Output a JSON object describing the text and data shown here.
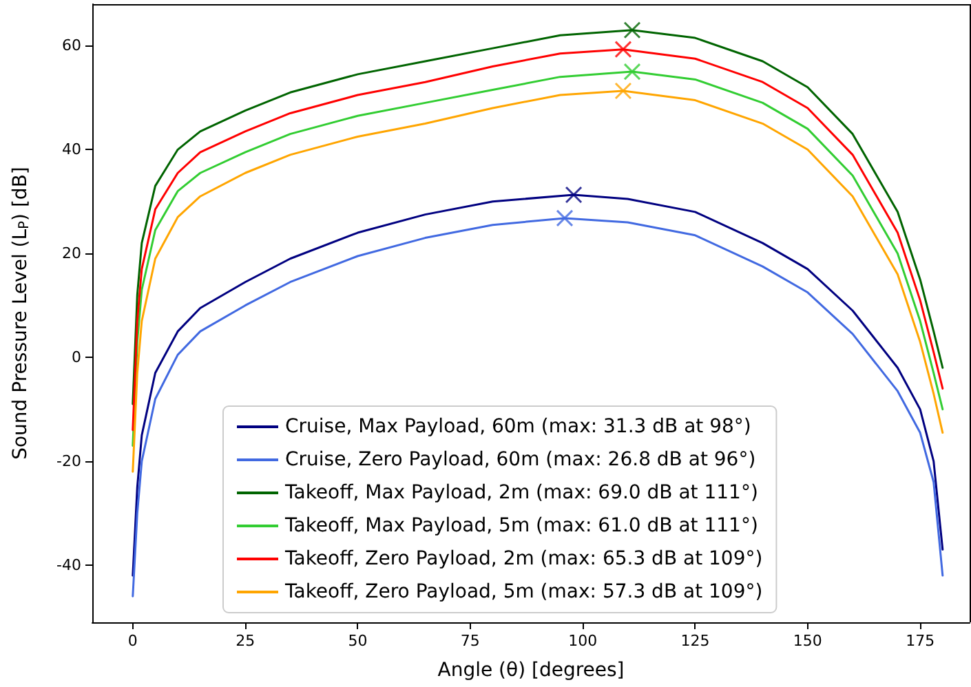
{
  "chart_data": {
    "type": "line",
    "xlabel": "Angle (θ) [degrees]",
    "ylabel": "Sound Pressure Level (L$_{P}$) [dB]",
    "xlim": [
      -9,
      186
    ],
    "xticks": [
      0,
      25,
      50,
      75,
      100,
      125,
      150,
      175
    ],
    "ylim": [
      -51,
      68
    ],
    "yticks": [
      -40,
      -20,
      0,
      20,
      40,
      60
    ],
    "grid": false,
    "legend": "bottom",
    "marker": "none",
    "line_style": "solid",
    "series": [
      {
        "name": "Cruise, Max Payload, 60m (max: 31.3 dB at 98°)",
        "color": "#000080",
        "x": [
          0,
          1,
          2,
          5,
          10,
          15,
          25,
          35,
          50,
          65,
          80,
          98,
          110,
          125,
          140,
          150,
          160,
          170,
          175,
          178,
          180
        ],
        "values": [
          -42,
          -25,
          -15,
          -3,
          5,
          9.5,
          14.5,
          19,
          24,
          27.5,
          30,
          31.3,
          30.5,
          28,
          22,
          17,
          9,
          -2,
          -10,
          -20,
          -37
        ]
      },
      {
        "name": "Cruise, Zero Payload, 60m (max: 26.8 dB at 96°)",
        "color": "#4169e1",
        "x": [
          0,
          1,
          2,
          5,
          10,
          15,
          25,
          35,
          50,
          65,
          80,
          96,
          110,
          125,
          140,
          150,
          160,
          170,
          175,
          178,
          180
        ],
        "values": [
          -46,
          -30,
          -20,
          -8,
          0.5,
          5,
          10,
          14.5,
          19.5,
          23,
          25.5,
          26.8,
          26,
          23.5,
          17.5,
          12.5,
          4.5,
          -6.5,
          -14.5,
          -24,
          -42
        ]
      },
      {
        "name": "Takeoff, Max Payload, 2m (max: 69.0 dB at 111°)",
        "color": "#006400",
        "x": [
          0,
          1,
          2,
          5,
          10,
          15,
          25,
          35,
          50,
          65,
          80,
          95,
          111,
          125,
          140,
          150,
          160,
          170,
          175,
          178,
          180
        ],
        "values": [
          -9,
          12,
          22,
          33,
          40,
          43.5,
          47.5,
          51,
          54.5,
          57,
          59.5,
          62,
          63,
          61.5,
          57,
          52,
          43,
          28,
          15,
          5,
          -2
        ]
      },
      {
        "name": "Takeoff, Max Payload, 5m (max: 61.0 dB at 111°)",
        "color": "#32cd32",
        "x": [
          0,
          1,
          2,
          5,
          10,
          15,
          25,
          35,
          50,
          65,
          80,
          95,
          111,
          125,
          140,
          150,
          160,
          170,
          175,
          178,
          180
        ],
        "values": [
          -17,
          3,
          13,
          24.5,
          32,
          35.5,
          39.5,
          43,
          46.5,
          49,
          51.5,
          54,
          55,
          53.5,
          49,
          44,
          35,
          20,
          7,
          -3,
          -10
        ]
      },
      {
        "name": "Takeoff, Zero Payload, 2m (max: 65.3 dB at 109°)",
        "color": "#ff0000",
        "x": [
          0,
          1,
          2,
          5,
          10,
          15,
          25,
          35,
          50,
          65,
          80,
          95,
          109,
          125,
          140,
          150,
          160,
          170,
          175,
          178,
          180
        ],
        "values": [
          -14,
          7,
          17,
          28.5,
          35.5,
          39.5,
          43.5,
          47,
          50.5,
          53,
          56,
          58.5,
          59.3,
          57.5,
          53,
          48,
          39,
          24,
          11,
          1,
          -6
        ]
      },
      {
        "name": "Takeoff, Zero Payload, 5m (max: 57.3 dB at 109°)",
        "color": "#ffa500",
        "x": [
          0,
          1,
          2,
          5,
          10,
          15,
          25,
          35,
          50,
          65,
          80,
          95,
          109,
          125,
          140,
          150,
          160,
          170,
          175,
          178,
          180
        ],
        "values": [
          -22,
          -3,
          7,
          19,
          27,
          31,
          35.5,
          39,
          42.5,
          45,
          48,
          50.5,
          51.3,
          49.5,
          45,
          40,
          31,
          16,
          3,
          -7,
          -14.5
        ]
      },
      {
        "type": "scatter",
        "marker": "cross",
        "x": [
          98,
          96,
          111,
          111,
          109,
          109
        ],
        "values": [
          31.3,
          26.8,
          63,
          55,
          59.3,
          51.3
        ],
        "colors": [
          "#000080",
          "#4169e1",
          "#006400",
          "#32cd32",
          "#ff0000",
          "#ffa500"
        ]
      }
    ]
  }
}
